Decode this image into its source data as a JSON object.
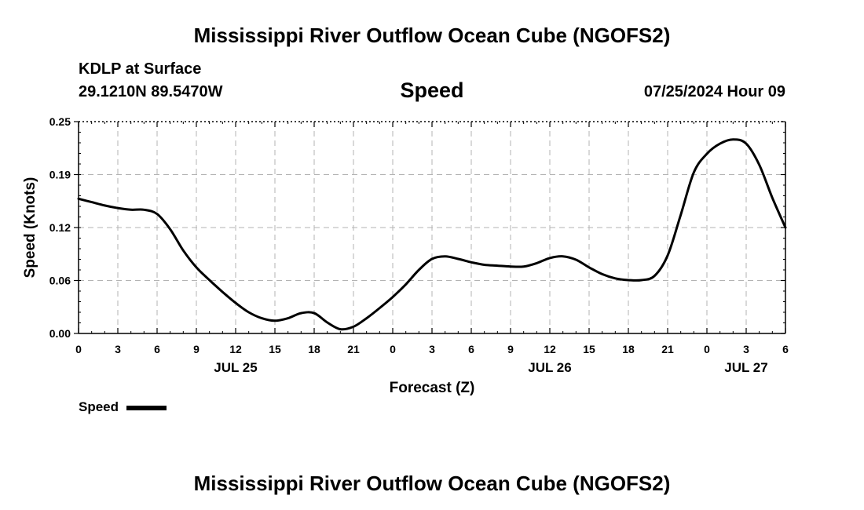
{
  "header": {
    "title": "Mississippi River Outflow Ocean Cube (NGOFS2)",
    "station": "KDLP at Surface",
    "coords": "29.1210N  89.5470W",
    "variable": "Speed",
    "timestamp": "07/25/2024 Hour 09"
  },
  "footer": {
    "title": "Mississippi River Outflow Ocean Cube (NGOFS2)"
  },
  "legend": {
    "label": "Speed",
    "color": "#000000"
  },
  "chart_data": {
    "type": "line",
    "title": "Speed",
    "xlabel": "Forecast (Z)",
    "ylabel": "Speed (Knots)",
    "xlim": [
      0,
      54
    ],
    "ylim": [
      0,
      0.25
    ],
    "grid": true,
    "legend_position": "bottom-left",
    "y_ticks": [
      "0.00",
      "0.06",
      "0.12",
      "0.19",
      "0.25"
    ],
    "y_tick_values": [
      0,
      0.0625,
      0.125,
      0.1875,
      0.25
    ],
    "x_ticks": [
      "0",
      "3",
      "6",
      "9",
      "12",
      "15",
      "18",
      "21",
      "0",
      "3",
      "6",
      "9",
      "12",
      "15",
      "18",
      "21",
      "0",
      "3",
      "6"
    ],
    "date_labels": [
      {
        "label": "JUL 25",
        "hour": 12
      },
      {
        "label": "JUL 26",
        "hour": 36
      },
      {
        "label": "JUL 27",
        "hour": 51
      }
    ],
    "series": [
      {
        "name": "Speed",
        "color": "#000000",
        "x": [
          0,
          1,
          2,
          3,
          4,
          5,
          6,
          7,
          8,
          9,
          10,
          11,
          12,
          13,
          14,
          15,
          16,
          17,
          18,
          19,
          20,
          21,
          22,
          23,
          24,
          25,
          26,
          27,
          28,
          29,
          30,
          31,
          32,
          33,
          34,
          35,
          36,
          37,
          38,
          39,
          40,
          41,
          42,
          43,
          44,
          45,
          46,
          47,
          48,
          49,
          50,
          51,
          52,
          53,
          54
        ],
        "y": [
          0.159,
          0.155,
          0.151,
          0.148,
          0.146,
          0.146,
          0.141,
          0.123,
          0.098,
          0.078,
          0.063,
          0.049,
          0.036,
          0.025,
          0.018,
          0.015,
          0.018,
          0.024,
          0.024,
          0.013,
          0.005,
          0.008,
          0.018,
          0.03,
          0.043,
          0.058,
          0.075,
          0.088,
          0.091,
          0.088,
          0.084,
          0.081,
          0.08,
          0.079,
          0.079,
          0.083,
          0.089,
          0.091,
          0.087,
          0.078,
          0.07,
          0.065,
          0.063,
          0.063,
          0.068,
          0.092,
          0.14,
          0.19,
          0.212,
          0.224,
          0.229,
          0.224,
          0.199,
          0.16,
          0.125
        ]
      }
    ]
  }
}
